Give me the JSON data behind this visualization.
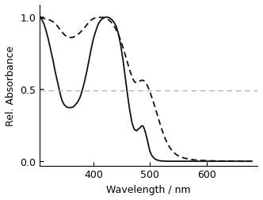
{
  "title": "",
  "xlabel": "Wavelength / nm",
  "ylabel": "Rel. Absorbance",
  "xlim": [
    305,
    690
  ],
  "ylim": [
    -0.03,
    1.08
  ],
  "yticks": [
    0.0,
    0.5,
    1.0
  ],
  "xticks": [
    400,
    500,
    600
  ],
  "hline_y": 0.488,
  "hline_color": "#aaaaaa",
  "hline_style": "--",
  "hline_lw": 0.9,
  "solid_color": "#111111",
  "dashed_color": "#111111",
  "solid_lw": 1.3,
  "dashed_lw": 1.3,
  "solid_x": [
    305,
    308,
    312,
    316,
    320,
    324,
    328,
    332,
    336,
    340,
    344,
    348,
    352,
    356,
    360,
    364,
    368,
    372,
    376,
    380,
    384,
    388,
    392,
    396,
    400,
    404,
    408,
    412,
    416,
    420,
    424,
    428,
    432,
    436,
    440,
    444,
    448,
    452,
    456,
    460,
    464,
    468,
    472,
    476,
    480,
    482,
    484,
    486,
    488,
    490,
    492,
    494,
    496,
    498,
    500,
    503,
    506,
    510,
    515,
    520,
    525,
    530,
    540,
    550,
    560,
    570,
    580,
    600,
    650,
    680
  ],
  "solid_y": [
    1.0,
    0.98,
    0.95,
    0.9,
    0.84,
    0.77,
    0.7,
    0.62,
    0.55,
    0.48,
    0.42,
    0.39,
    0.375,
    0.37,
    0.37,
    0.375,
    0.39,
    0.41,
    0.44,
    0.49,
    0.55,
    0.62,
    0.7,
    0.78,
    0.85,
    0.9,
    0.945,
    0.97,
    0.985,
    0.993,
    0.995,
    0.99,
    0.978,
    0.96,
    0.93,
    0.88,
    0.8,
    0.7,
    0.58,
    0.46,
    0.35,
    0.265,
    0.22,
    0.21,
    0.225,
    0.23,
    0.24,
    0.245,
    0.24,
    0.22,
    0.195,
    0.165,
    0.13,
    0.095,
    0.065,
    0.04,
    0.025,
    0.012,
    0.005,
    0.002,
    0.001,
    0.0,
    0.0,
    0.0,
    0.0,
    0.0,
    0.0,
    0.0,
    0.0,
    0.0
  ],
  "dashed_x": [
    305,
    308,
    312,
    316,
    320,
    324,
    328,
    332,
    336,
    340,
    344,
    348,
    352,
    356,
    360,
    364,
    368,
    372,
    376,
    380,
    384,
    388,
    392,
    396,
    400,
    404,
    408,
    412,
    416,
    420,
    424,
    428,
    432,
    436,
    440,
    444,
    448,
    452,
    456,
    460,
    464,
    468,
    472,
    476,
    480,
    484,
    488,
    492,
    496,
    500,
    504,
    508,
    512,
    516,
    520,
    525,
    530,
    535,
    540,
    545,
    550,
    560,
    570,
    580,
    590,
    600,
    620,
    640,
    660,
    680
  ],
  "dashed_y": [
    0.995,
    0.99,
    0.985,
    0.982,
    0.978,
    0.972,
    0.963,
    0.95,
    0.933,
    0.912,
    0.892,
    0.875,
    0.862,
    0.855,
    0.853,
    0.856,
    0.863,
    0.874,
    0.888,
    0.904,
    0.922,
    0.942,
    0.96,
    0.975,
    0.985,
    0.99,
    0.992,
    0.993,
    0.993,
    0.99,
    0.983,
    0.972,
    0.956,
    0.935,
    0.907,
    0.873,
    0.832,
    0.785,
    0.734,
    0.68,
    0.628,
    0.581,
    0.549,
    0.54,
    0.548,
    0.558,
    0.558,
    0.545,
    0.515,
    0.475,
    0.43,
    0.381,
    0.33,
    0.278,
    0.228,
    0.172,
    0.128,
    0.093,
    0.068,
    0.05,
    0.037,
    0.022,
    0.014,
    0.009,
    0.006,
    0.004,
    0.002,
    0.001,
    0.0,
    0.0
  ]
}
